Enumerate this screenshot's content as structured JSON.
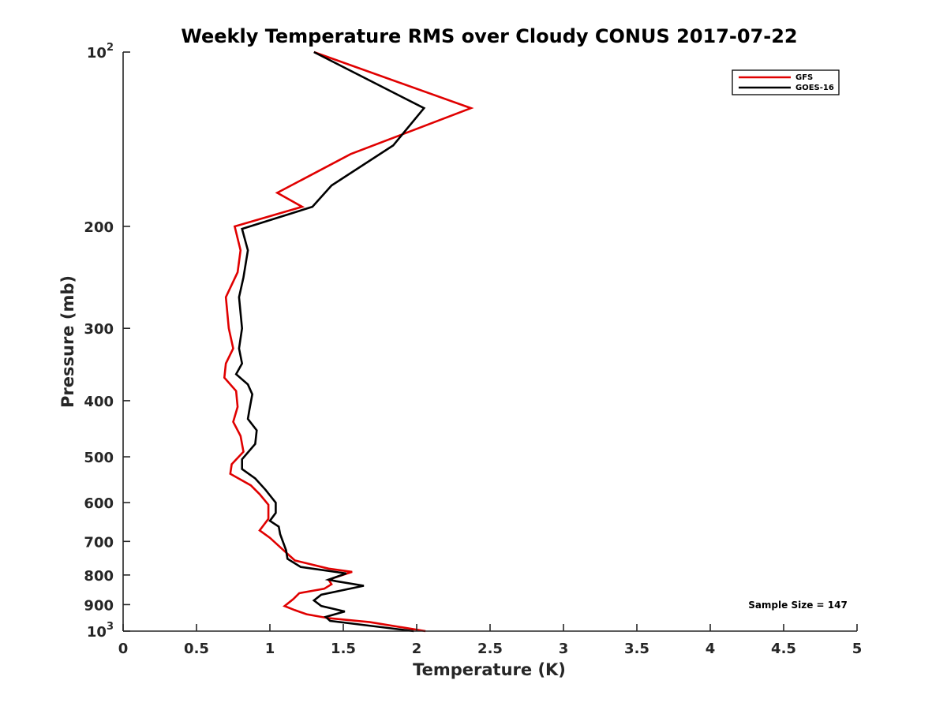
{
  "chart_data": {
    "type": "line",
    "title": "Weekly Temperature RMS over Cloudy CONUS 2017-07-22",
    "xlabel": "Temperature (K)",
    "ylabel": "Pressure (mb)",
    "xlim": [
      0,
      5
    ],
    "ylim": [
      1000,
      100
    ],
    "yscale": "log",
    "grid": false,
    "legend_location": "top-right",
    "x_ticks": [
      0,
      0.5,
      1,
      1.5,
      2,
      2.5,
      3,
      3.5,
      4,
      4.5,
      5
    ],
    "x_tick_labels": [
      "0",
      "0.5",
      "1",
      "1.5",
      "2",
      "2.5",
      "3",
      "3.5",
      "4",
      "4.5",
      "5"
    ],
    "y_ticks": [
      100,
      200,
      300,
      400,
      500,
      600,
      700,
      800,
      900,
      1000
    ],
    "y_tick_labels": [
      {
        "base": "10",
        "exp": "2"
      },
      {
        "base": "200",
        "exp": ""
      },
      {
        "base": "300",
        "exp": ""
      },
      {
        "base": "400",
        "exp": ""
      },
      {
        "base": "500",
        "exp": ""
      },
      {
        "base": "600",
        "exp": ""
      },
      {
        "base": "700",
        "exp": ""
      },
      {
        "base": "800",
        "exp": ""
      },
      {
        "base": "900",
        "exp": ""
      },
      {
        "base": "10",
        "exp": "3"
      }
    ],
    "series": [
      {
        "name": "GFS",
        "color": "#e00000",
        "points": [
          [
            1.3,
            100
          ],
          [
            2.37,
            125
          ],
          [
            1.55,
            150
          ],
          [
            1.05,
            175
          ],
          [
            1.22,
            185
          ],
          [
            0.76,
            200
          ],
          [
            0.8,
            220
          ],
          [
            0.78,
            240
          ],
          [
            0.7,
            265
          ],
          [
            0.72,
            300
          ],
          [
            0.75,
            325
          ],
          [
            0.7,
            345
          ],
          [
            0.69,
            365
          ],
          [
            0.77,
            385
          ],
          [
            0.78,
            410
          ],
          [
            0.75,
            435
          ],
          [
            0.8,
            460
          ],
          [
            0.82,
            490
          ],
          [
            0.74,
            515
          ],
          [
            0.73,
            535
          ],
          [
            0.87,
            560
          ],
          [
            0.93,
            580
          ],
          [
            0.99,
            605
          ],
          [
            0.99,
            640
          ],
          [
            0.95,
            660
          ],
          [
            0.93,
            670
          ],
          [
            1.0,
            690
          ],
          [
            1.08,
            720
          ],
          [
            1.17,
            755
          ],
          [
            1.4,
            780
          ],
          [
            1.56,
            790
          ],
          [
            1.4,
            815
          ],
          [
            1.42,
            830
          ],
          [
            1.37,
            845
          ],
          [
            1.2,
            860
          ],
          [
            1.16,
            880
          ],
          [
            1.1,
            905
          ],
          [
            1.17,
            920
          ],
          [
            1.25,
            935
          ],
          [
            1.4,
            950
          ],
          [
            1.68,
            965
          ],
          [
            2.06,
            1000
          ]
        ]
      },
      {
        "name": "GOES-16",
        "color": "#000000",
        "points": [
          [
            1.3,
            100
          ],
          [
            2.05,
            125
          ],
          [
            1.84,
            145
          ],
          [
            1.42,
            170
          ],
          [
            1.29,
            185
          ],
          [
            0.81,
            202
          ],
          [
            0.85,
            220
          ],
          [
            0.82,
            245
          ],
          [
            0.79,
            265
          ],
          [
            0.81,
            300
          ],
          [
            0.79,
            325
          ],
          [
            0.81,
            345
          ],
          [
            0.77,
            360
          ],
          [
            0.85,
            375
          ],
          [
            0.88,
            390
          ],
          [
            0.86,
            415
          ],
          [
            0.85,
            430
          ],
          [
            0.91,
            450
          ],
          [
            0.9,
            475
          ],
          [
            0.81,
            505
          ],
          [
            0.81,
            525
          ],
          [
            0.9,
            545
          ],
          [
            0.97,
            570
          ],
          [
            1.04,
            600
          ],
          [
            1.04,
            625
          ],
          [
            1.0,
            645
          ],
          [
            1.06,
            660
          ],
          [
            1.07,
            680
          ],
          [
            1.11,
            725
          ],
          [
            1.12,
            750
          ],
          [
            1.21,
            775
          ],
          [
            1.52,
            795
          ],
          [
            1.4,
            815
          ],
          [
            1.45,
            820
          ],
          [
            1.64,
            835
          ],
          [
            1.35,
            865
          ],
          [
            1.3,
            885
          ],
          [
            1.35,
            905
          ],
          [
            1.51,
            925
          ],
          [
            1.38,
            945
          ],
          [
            1.41,
            960
          ],
          [
            1.98,
            1000
          ]
        ]
      }
    ],
    "annotations": [
      {
        "text": "Sample Size = 147"
      }
    ]
  }
}
